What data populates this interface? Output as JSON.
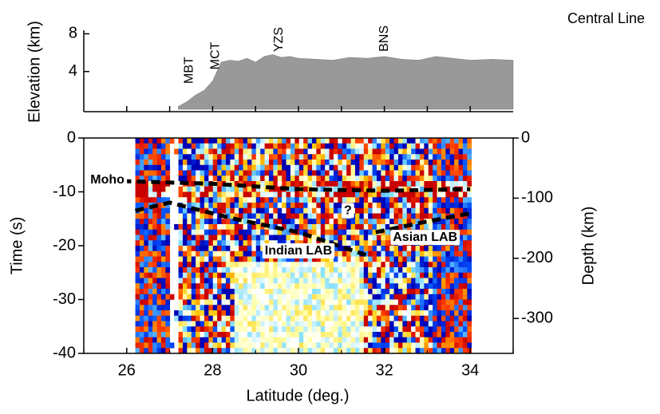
{
  "chart_data": [
    {
      "type": "area",
      "title": "Central Line",
      "y_label": "Elevation (km)",
      "color": "#999999",
      "x": [
        27.2,
        27.4,
        27.6,
        27.8,
        28.0,
        28.2,
        28.4,
        28.6,
        28.8,
        29.0,
        29.2,
        29.4,
        29.6,
        29.8,
        30.0,
        30.4,
        30.8,
        31.2,
        31.6,
        32.0,
        32.4,
        32.8,
        33.2,
        33.6,
        34.0,
        34.5,
        35.0
      ],
      "values": [
        0.3,
        0.8,
        1.5,
        2.0,
        3.0,
        5.0,
        5.2,
        5.1,
        5.4,
        5.0,
        5.6,
        5.8,
        5.5,
        5.6,
        5.4,
        5.3,
        5.2,
        5.5,
        5.4,
        5.6,
        5.3,
        5.2,
        5.6,
        5.4,
        5.2,
        5.3,
        5.2
      ],
      "xlim": [
        25,
        35
      ],
      "xticks": [
        26,
        27,
        28,
        29,
        30,
        31,
        32,
        33,
        34
      ],
      "ylim": [
        0,
        8.2
      ],
      "yticks": [
        4,
        8
      ],
      "annotations": [
        {
          "text": "MBT",
          "x": 27.46
        },
        {
          "text": "MCT",
          "x": 28.07
        },
        {
          "text": "YZS",
          "x": 29.55
        },
        {
          "text": "BNS",
          "x": 32.0
        }
      ]
    },
    {
      "type": "image",
      "x_label": "Latitude (deg.)",
      "y_label": "Time (s)",
      "y2_label": "Depth (km)",
      "xlim": [
        25,
        35
      ],
      "xticks": [
        26,
        28,
        30,
        32,
        34
      ],
      "xminor": [
        25,
        27,
        29,
        31,
        33,
        35
      ],
      "ylim": [
        -40,
        0
      ],
      "yticks": [
        0,
        -10,
        -20,
        -30,
        -40
      ],
      "y2lim": [
        -358,
        0
      ],
      "y2ticks": [
        0,
        -100,
        -200,
        -300
      ],
      "lines": [
        {
          "x": [
            25.9,
            28,
            30,
            32,
            34
          ],
          "y": [
            -8,
            -8.5,
            -9.5,
            -9.8,
            -9.5
          ]
        },
        {
          "x": [
            26.2,
            27,
            28.5,
            30,
            31.6
          ],
          "y": [
            -13.5,
            -12,
            -15,
            -17.5,
            -21.8
          ]
        },
        {
          "x": [
            31.8,
            33,
            34
          ],
          "y": [
            -17.5,
            -15.5,
            -14
          ]
        }
      ],
      "annotations": [
        {
          "text": "Moho",
          "x": 25.55,
          "y": -7.8
        },
        {
          "text": "?",
          "x": 31.15,
          "y": -13.5
        },
        {
          "text": "Asian LAB",
          "x": 32.95,
          "y": -18.5
        },
        {
          "text": "Indian LAB",
          "x": 30.0,
          "y": -21
        }
      ]
    }
  ]
}
